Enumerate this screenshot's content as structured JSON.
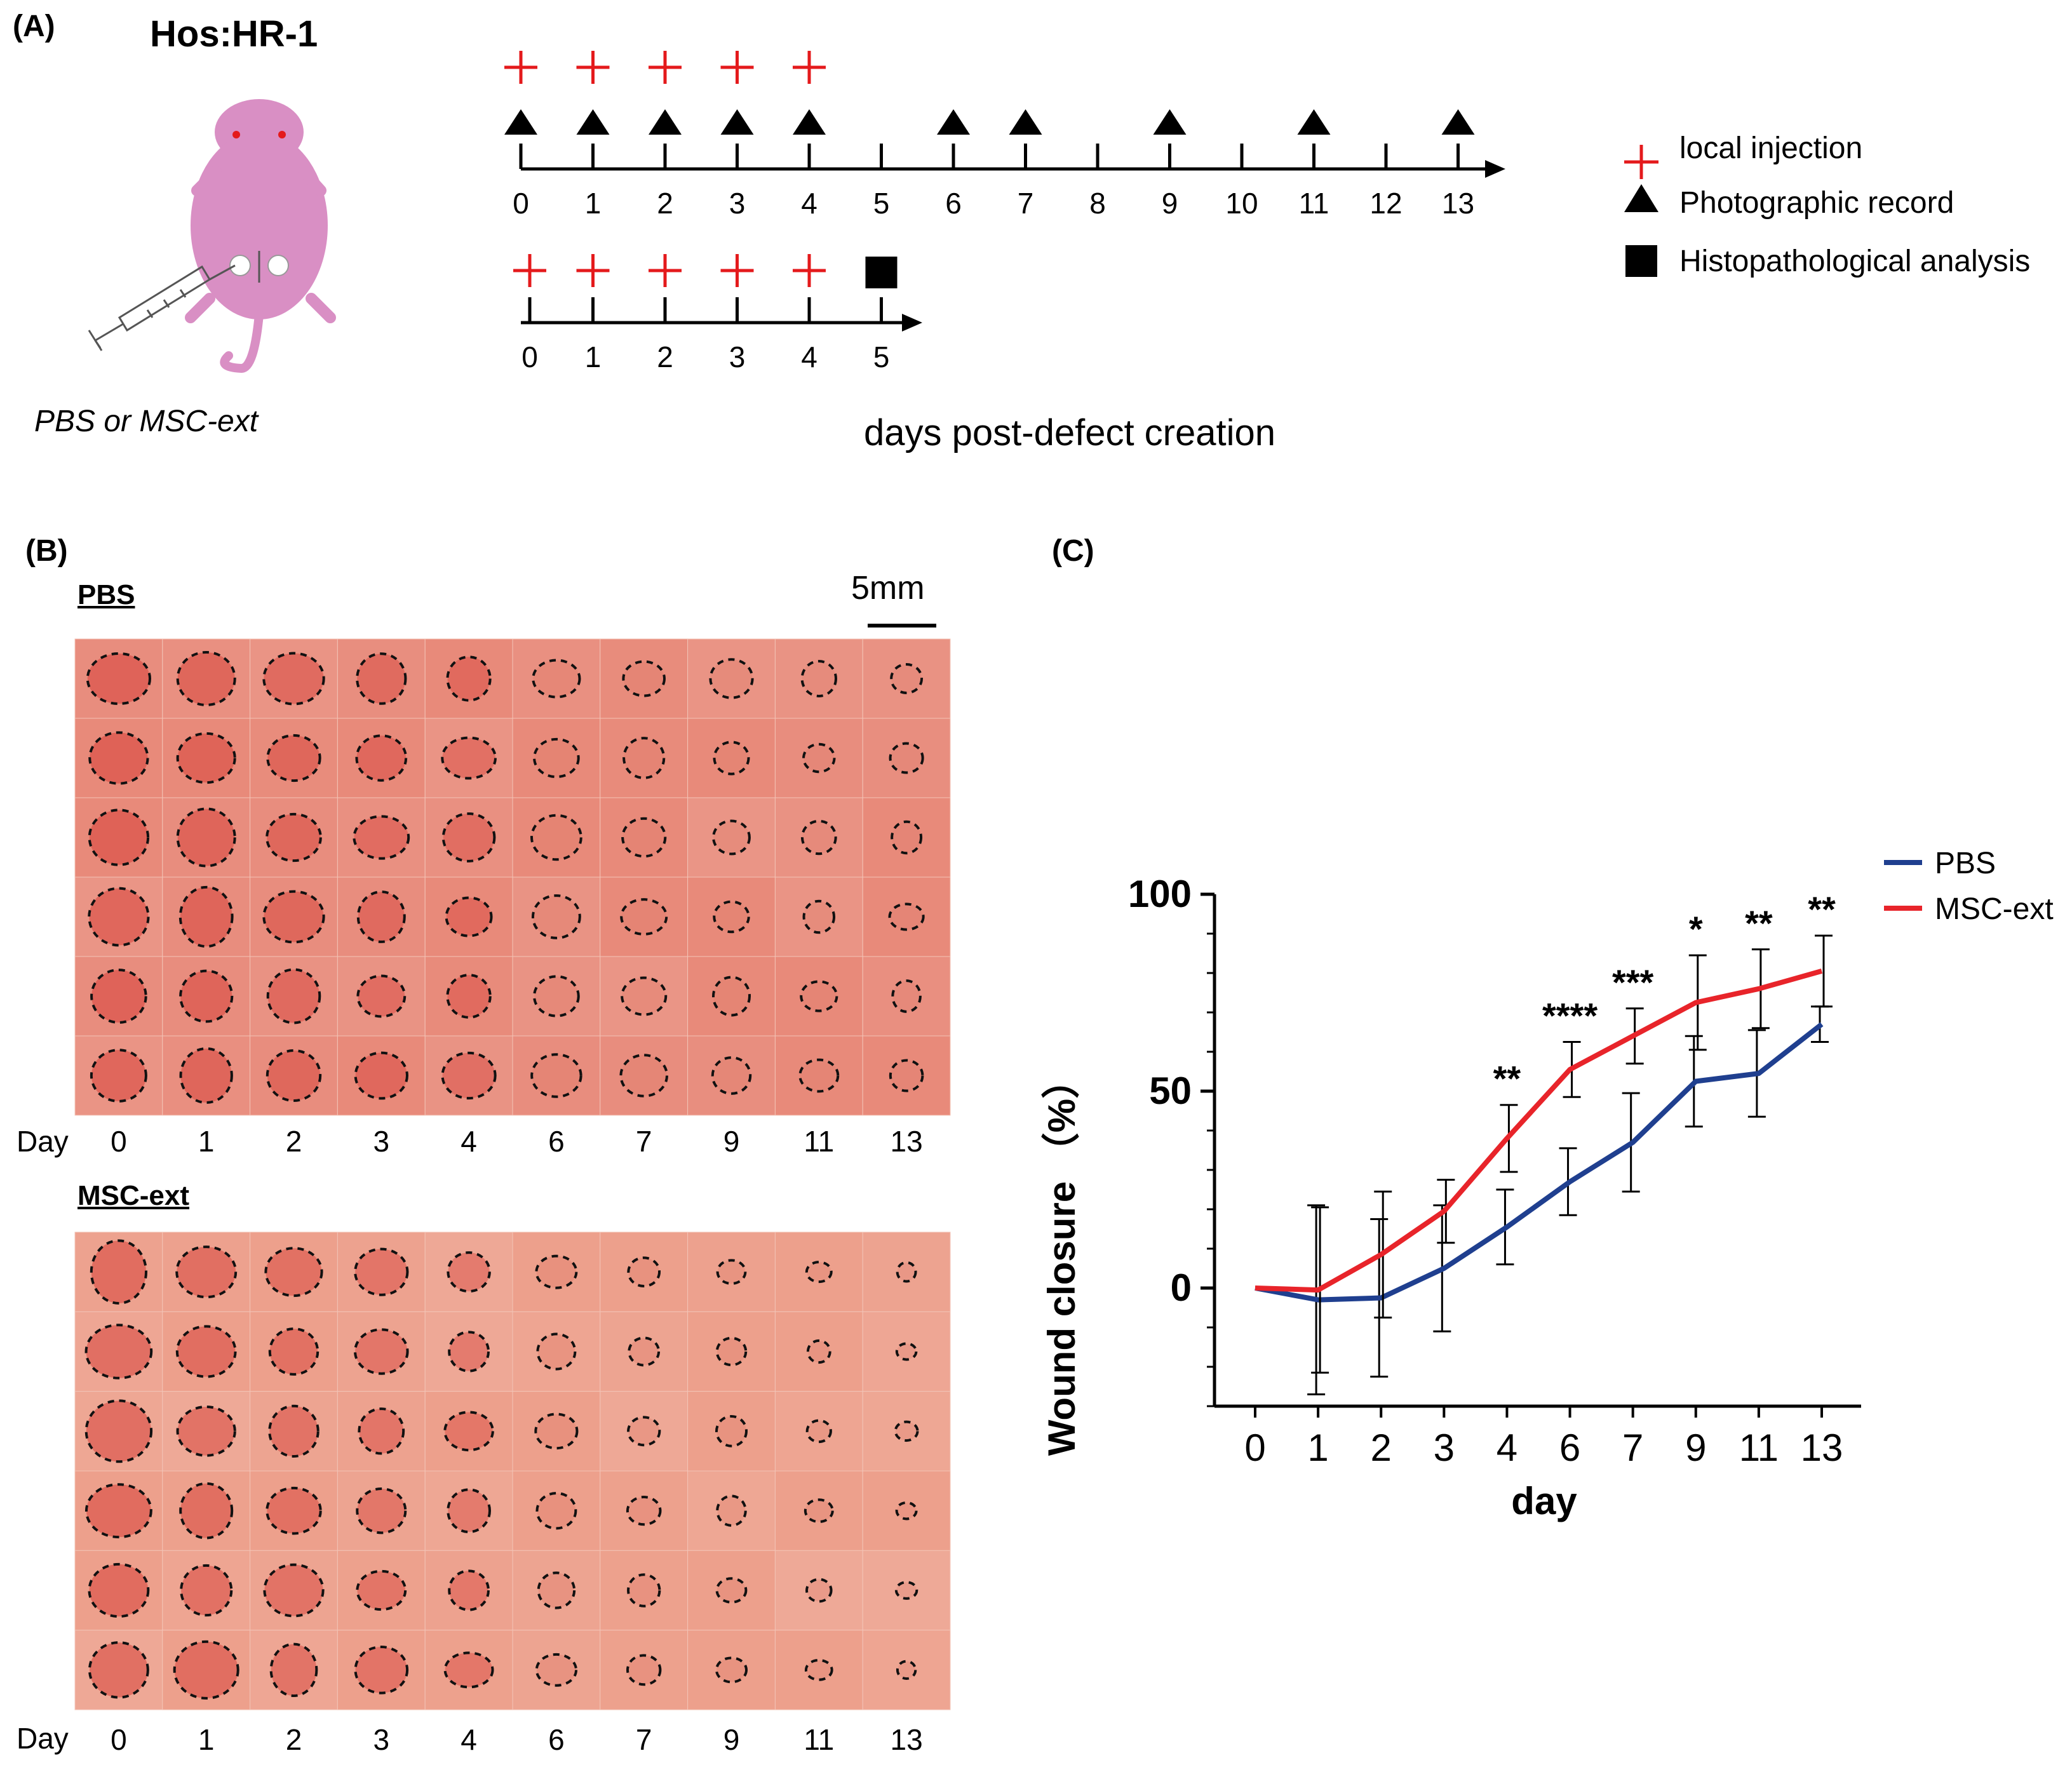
{
  "panel_a": {
    "label": "(A)",
    "strain": "Hos:HR-1",
    "treatment": "PBS or MSC-ext",
    "timeline1_days": [
      "0",
      "1",
      "2",
      "3",
      "4",
      "5",
      "6",
      "7",
      "8",
      "9",
      "10",
      "11",
      "12",
      "13"
    ],
    "timeline1_injection_days": [
      0,
      1,
      2,
      3,
      4
    ],
    "timeline1_photo_days": [
      0,
      1,
      2,
      3,
      4,
      6,
      7,
      9,
      11,
      13
    ],
    "timeline2_days": [
      "0",
      "1",
      "2",
      "3",
      "4",
      "5"
    ],
    "timeline2_injection_days": [
      0,
      1,
      2,
      3,
      4
    ],
    "timeline2_histo_day": 5,
    "xlabel": "days post-defect creation",
    "legend": [
      {
        "symbol": "plus",
        "label": "local injection"
      },
      {
        "symbol": "triangle",
        "label": "Photographic record"
      },
      {
        "symbol": "square",
        "label": "Histopathological analysis"
      }
    ],
    "colors": {
      "injection": "#e41a1c",
      "marker": "#000000",
      "mouse": "#d98fc4"
    }
  },
  "panel_b": {
    "label": "(B)",
    "scale_bar": "5mm",
    "groups": [
      {
        "name": "PBS",
        "tone": "#e88a7a"
      },
      {
        "name": "MSC-ext",
        "tone": "#eda08c"
      }
    ],
    "day_label": "Day",
    "days": [
      "0",
      "1",
      "2",
      "3",
      "4",
      "6",
      "7",
      "9",
      "11",
      "13"
    ],
    "rows_per_group": 6
  },
  "chart_data": {
    "type": "line",
    "label": "(C)",
    "title": "",
    "xlabel": "day",
    "ylabel": "Wound closure （%）",
    "categories": [
      "0",
      "1",
      "2",
      "3",
      "4",
      "6",
      "7",
      "9",
      "11",
      "13"
    ],
    "ylim": [
      -30,
      100
    ],
    "yticks": [
      0,
      50,
      100
    ],
    "series": [
      {
        "name": "PBS",
        "color": "#1f3f8f",
        "values": [
          0,
          -3,
          -2.5,
          5,
          15.5,
          27,
          37,
          52.5,
          54.5,
          67
        ],
        "errors": [
          0,
          24,
          20,
          16,
          9.5,
          8.5,
          12.5,
          11.5,
          11,
          4.5
        ]
      },
      {
        "name": "MSC-ext",
        "color": "#e8242a",
        "values": [
          0,
          -0.5,
          8.5,
          19.5,
          38,
          55.5,
          64,
          72.5,
          76,
          80.5
        ],
        "errors": [
          0,
          21,
          16,
          8,
          8.5,
          7,
          7,
          12,
          10,
          9
        ]
      }
    ],
    "significance": [
      "",
      "",
      "",
      "",
      "**",
      "****",
      "***",
      "*",
      "**",
      "**"
    ],
    "legend_position": "top-right"
  }
}
